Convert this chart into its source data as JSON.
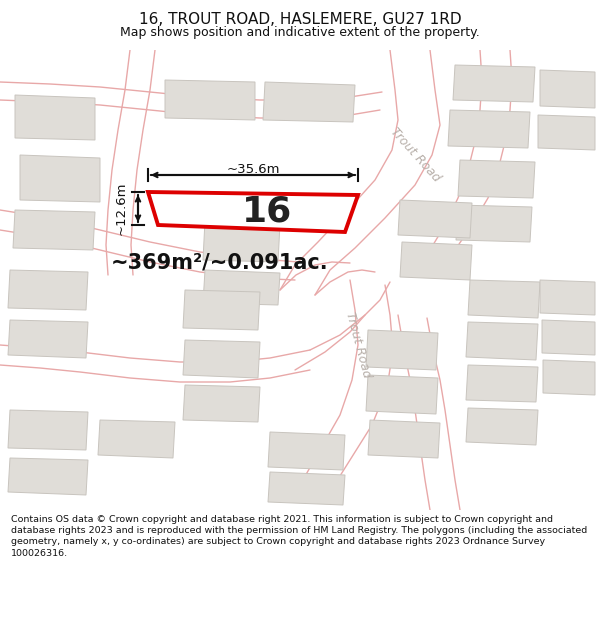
{
  "title": "16, TROUT ROAD, HASLEMERE, GU27 1RD",
  "subtitle": "Map shows position and indicative extent of the property.",
  "footer": "Contains OS data © Crown copyright and database right 2021. This information is subject to Crown copyright and database rights 2023 and is reproduced with the permission of HM Land Registry. The polygons (including the associated geometry, namely x, y co-ordinates) are subject to Crown copyright and database rights 2023 Ordnance Survey 100026316.",
  "bg_color": "#f8f7f5",
  "highlight_color": "#dd0000",
  "road_line_color": "#e8a8a8",
  "road_fill_color": "#f0e8e8",
  "building_color": "#e0ddd8",
  "building_edge": "#c8c4be",
  "label_number": "16",
  "area_text": "~369m²/~0.091ac.",
  "dim_width": "~35.6m",
  "dim_height": "~12.6m",
  "road_label": "Trout Road",
  "fig_width": 6.0,
  "fig_height": 6.25,
  "dpi": 100,
  "title_fontsize": 11,
  "subtitle_fontsize": 9,
  "footer_fontsize": 6.8
}
